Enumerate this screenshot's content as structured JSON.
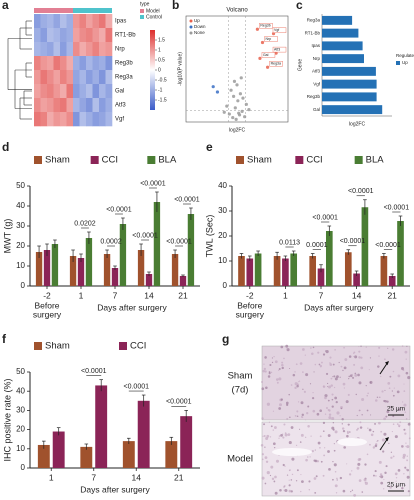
{
  "chart_data": [
    {
      "type": "heatmap",
      "panel": "a",
      "rows": [
        "Ipas",
        "RT1-Bb",
        "Nrp",
        "Reg3b",
        "Reg3a",
        "Gal",
        "Atf3",
        "Vgf"
      ],
      "values": [
        [
          -1.2,
          -1.0,
          -0.9,
          -1.1,
          -0.8,
          -1.0,
          1.0,
          1.2,
          0.9,
          1.1,
          1.3,
          0.8
        ],
        [
          -1.0,
          -1.2,
          -0.8,
          -0.9,
          -1.1,
          -1.0,
          0.9,
          1.1,
          1.2,
          1.0,
          0.8,
          1.3
        ],
        [
          -0.9,
          -1.0,
          -1.1,
          -0.8,
          -1.2,
          -0.9,
          1.1,
          0.8,
          1.0,
          1.2,
          0.9,
          1.0
        ],
        [
          1.2,
          1.0,
          0.9,
          1.3,
          1.1,
          0.8,
          -1.0,
          -1.2,
          -0.9,
          -1.1,
          -1.0,
          -1.3
        ],
        [
          1.0,
          1.3,
          1.1,
          0.9,
          1.2,
          1.0,
          -1.1,
          -0.9,
          -1.2,
          -1.0,
          -1.3,
          -0.8
        ],
        [
          0.9,
          1.1,
          1.2,
          1.0,
          0.8,
          1.3,
          -1.2,
          -1.0,
          -0.8,
          -1.3,
          -0.9,
          -1.1
        ],
        [
          1.1,
          0.9,
          1.0,
          1.2,
          1.3,
          0.9,
          -0.9,
          -1.1,
          -1.3,
          -0.8,
          -1.2,
          -1.0
        ],
        [
          1.3,
          1.2,
          0.8,
          1.0,
          0.9,
          1.1,
          -1.3,
          -0.8,
          -1.0,
          -1.2,
          -1.1,
          -0.9
        ]
      ],
      "zlim": [
        -2,
        2
      ],
      "zticks": [
        1.5,
        1,
        0.5,
        0,
        -0.5,
        -1,
        -1.5
      ],
      "colors": {
        "low": "#3b5cc9",
        "mid": "#ffffff",
        "high": "#dd2e2c"
      },
      "groups": [
        {
          "name": "Model",
          "color": "#e27f93"
        },
        {
          "name": "Control",
          "color": "#4fc3cc"
        }
      ],
      "group_title": "type"
    },
    {
      "type": "scatter",
      "panel": "b",
      "title": "Volcano",
      "xlabel": "log2FC",
      "ylabel": "-log10(P value)",
      "xlim": [
        -6,
        6
      ],
      "ylim": [
        0,
        12
      ],
      "series": [
        {
          "name": "Up",
          "color": "#e8604c",
          "x": [
            2.4,
            3.0,
            4.3,
            4.6,
            2.7,
            3.6
          ],
          "y": [
            10.5,
            9.0,
            10.0,
            7.8,
            7.2,
            6.2
          ],
          "labels": [
            "Reg3b",
            "Nrp",
            "Vgf",
            "Atf3",
            "Gal",
            "Reg3a"
          ]
        },
        {
          "name": "Down",
          "color": "#3a6fc4",
          "x": [
            -2.3,
            -2.8
          ],
          "y": [
            3.4,
            4.0
          ]
        },
        {
          "name": "None",
          "color": "#9a9a9a",
          "x": [
            -0.5,
            0.3,
            -0.2,
            0.6,
            -0.9,
            0.1,
            0.9,
            -0.4,
            0.4,
            -1.2,
            1.1,
            0.0,
            -0.7,
            0.7,
            -0.1,
            0.2,
            -1.5,
            1.4,
            0.5,
            -0.3
          ],
          "y": [
            0.5,
            0.8,
            1.6,
            1.2,
            0.9,
            2.4,
            0.6,
            2.9,
            3.2,
            1.8,
            2.0,
            4.2,
            3.6,
            2.7,
            0.3,
            1.0,
            1.1,
            1.4,
            5.0,
            4.6
          ]
        }
      ]
    },
    {
      "type": "hbar",
      "panel": "c",
      "xlabel": "log2FC",
      "ylabel": "Gene",
      "legend_title": "Regulate",
      "categories": [
        "Reg3a",
        "RT1-Bb",
        "Ipas",
        "Nrp",
        "Atf3",
        "Vgf",
        "Reg3b",
        "Gal"
      ],
      "series": [
        {
          "name": "Up",
          "color": "#2471b5",
          "values": [
            4.3,
            5.2,
            5.8,
            6.0,
            7.7,
            7.8,
            7.8,
            8.6
          ]
        }
      ],
      "xlim": [
        0,
        10
      ]
    },
    {
      "type": "grouped_bar",
      "panel": "d",
      "ylabel": "MWT (g)",
      "xlabel": "Days after surgery",
      "x_note": [
        "Before",
        "surgery"
      ],
      "categories": [
        "-2",
        "1",
        "7",
        "14",
        "21"
      ],
      "ylim": [
        0,
        50
      ],
      "yticks": [
        0,
        10,
        20,
        30,
        40,
        50
      ],
      "series": [
        {
          "name": "Sham",
          "color": "#a0522d",
          "values": [
            17,
            15,
            16,
            18,
            16
          ],
          "errors": [
            3,
            3,
            2,
            3,
            2
          ]
        },
        {
          "name": "CCI",
          "color": "#8b2457",
          "values": [
            18,
            14,
            9,
            6,
            5
          ],
          "errors": [
            3,
            2,
            1,
            1,
            0.5
          ]
        },
        {
          "name": "BLA",
          "color": "#4a7d33",
          "values": [
            21,
            24,
            31,
            42,
            36
          ],
          "errors": [
            2,
            3,
            3,
            5,
            3
          ]
        }
      ],
      "annotations": [
        [],
        [
          "0.0202"
        ],
        [
          "0.0002",
          "<0.0001"
        ],
        [
          "<0.0001",
          "<0.0001"
        ],
        [
          "<0.0001",
          "<0.0001"
        ]
      ]
    },
    {
      "type": "grouped_bar",
      "panel": "e",
      "ylabel": "TWL (Sec)",
      "xlabel": "Days after surgery",
      "x_note": [
        "Before",
        "surgery"
      ],
      "categories": [
        "-2",
        "1",
        "7",
        "14",
        "21"
      ],
      "ylim": [
        0,
        40
      ],
      "yticks": [
        0,
        10,
        20,
        30,
        40
      ],
      "series": [
        {
          "name": "Sham",
          "color": "#a0522d",
          "values": [
            12,
            12,
            12,
            13.5,
            12
          ],
          "errors": [
            1,
            1.5,
            1,
            1,
            1
          ]
        },
        {
          "name": "CCI",
          "color": "#8b2457",
          "values": [
            11,
            11,
            7,
            5,
            4
          ],
          "errors": [
            1,
            1,
            1.5,
            1,
            0.8
          ]
        },
        {
          "name": "BLA",
          "color": "#4a7d33",
          "values": [
            13,
            13,
            22,
            31.5,
            26
          ],
          "errors": [
            1,
            1,
            2,
            3,
            2
          ]
        }
      ],
      "annotations": [
        [],
        [
          "0.0113"
        ],
        [
          "0.0001",
          "<0.0001"
        ],
        [
          "<0.0001",
          "<0.0001"
        ],
        [
          "<0.0001",
          "<0.0001"
        ]
      ]
    },
    {
      "type": "grouped_bar",
      "panel": "f",
      "ylabel": "IHC positive rate (%)",
      "xlabel": "Days after surgery",
      "categories": [
        "1",
        "7",
        "14",
        "21"
      ],
      "ylim": [
        0,
        50
      ],
      "yticks": [
        0,
        10,
        20,
        30,
        40,
        50
      ],
      "series": [
        {
          "name": "Sham",
          "color": "#a0522d",
          "values": [
            12,
            11,
            14,
            14
          ],
          "errors": [
            2,
            1.5,
            1.5,
            2
          ]
        },
        {
          "name": "CCI",
          "color": "#8b2457",
          "values": [
            19,
            43,
            35,
            27
          ],
          "errors": [
            2,
            3,
            3,
            3
          ]
        }
      ],
      "annotations": [
        [],
        [
          "<0.0001"
        ],
        [
          "<0.0001"
        ],
        [
          "<0.0001"
        ]
      ]
    },
    {
      "type": "micrograph",
      "panel": "g",
      "labels": [
        [
          "Sham",
          "(7d)"
        ],
        [
          "Model"
        ]
      ],
      "scale_bars": [
        "25 μm",
        "25 μm"
      ]
    }
  ]
}
